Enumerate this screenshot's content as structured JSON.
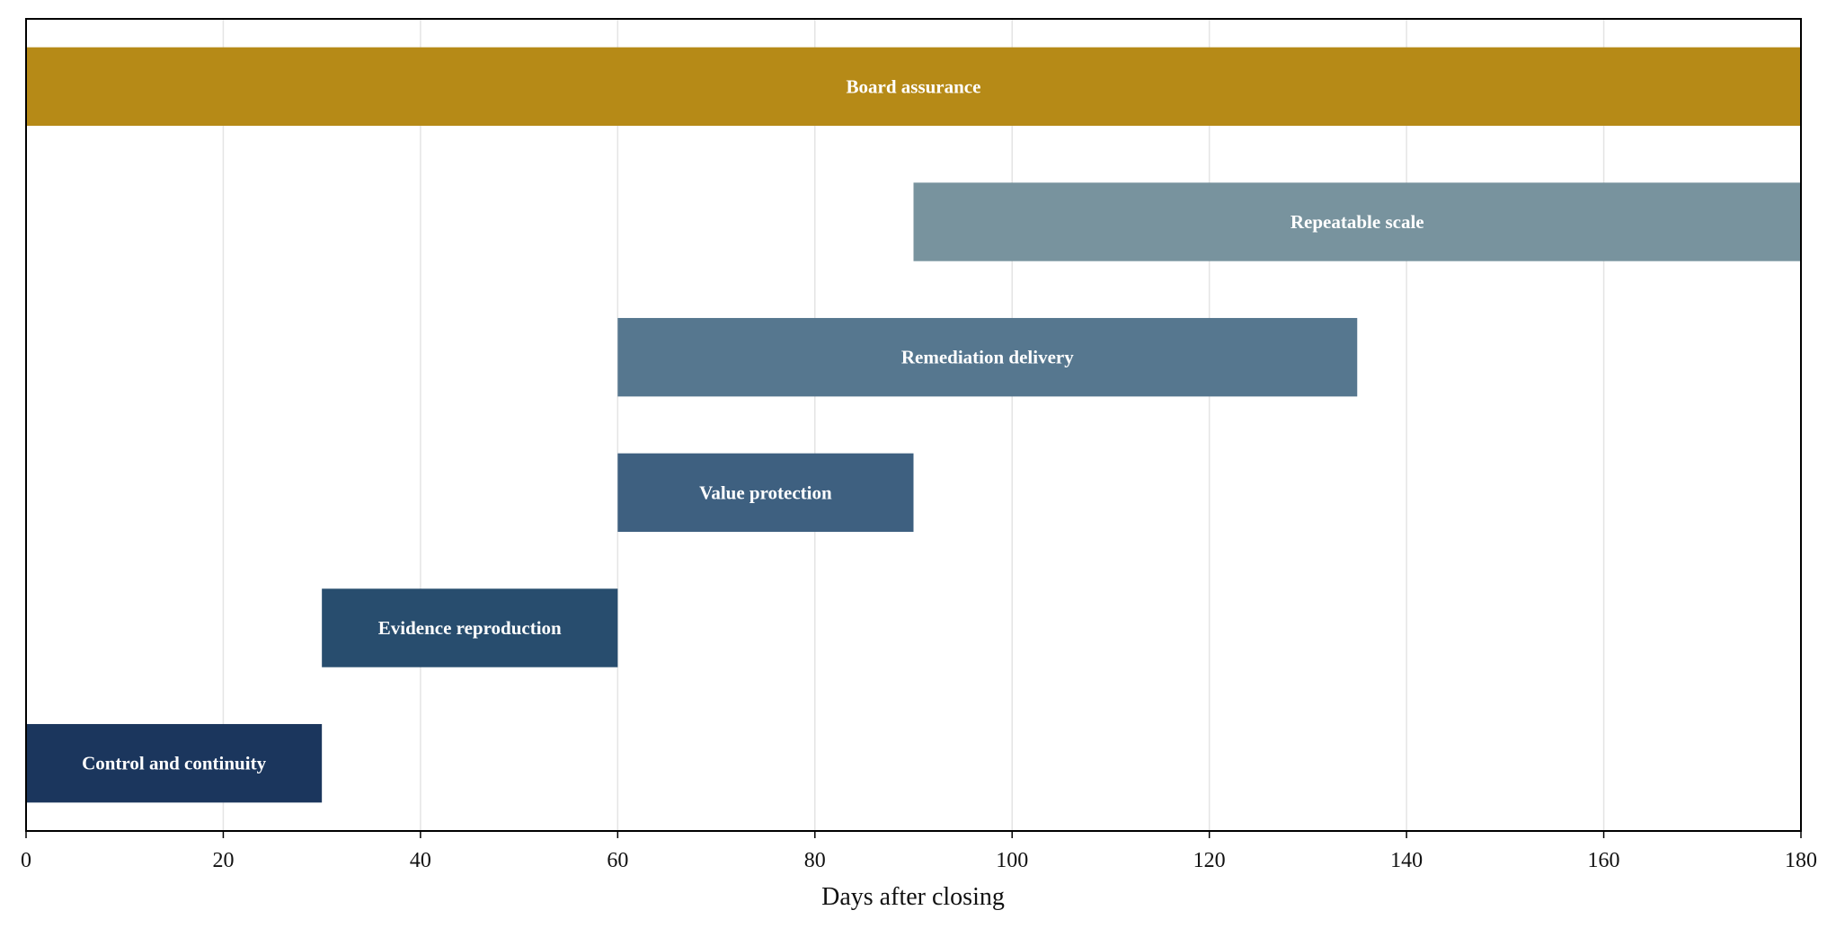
{
  "chart_data": {
    "type": "bar",
    "orientation": "horizontal",
    "title": "",
    "xlabel": "Days after closing",
    "ylabel": "",
    "xlim": [
      0,
      180
    ],
    "xticks": [
      0,
      20,
      40,
      60,
      80,
      100,
      120,
      140,
      160,
      180
    ],
    "grid": "vertical",
    "legend": "none",
    "tasks": [
      {
        "label": "Control and continuity",
        "start": 0,
        "end": 30,
        "color": "#1b365d"
      },
      {
        "label": "Evidence reproduction",
        "start": 30,
        "end": 60,
        "color": "#284d6e"
      },
      {
        "label": "Value protection",
        "start": 60,
        "end": 90,
        "color": "#3e6080"
      },
      {
        "label": "Remediation delivery",
        "start": 60,
        "end": 135,
        "color": "#56778f"
      },
      {
        "label": "Repeatable scale",
        "start": 90,
        "end": 180,
        "color": "#78939e"
      },
      {
        "label": "Board assurance",
        "start": 0,
        "end": 180,
        "color": "#b68a17"
      }
    ]
  }
}
